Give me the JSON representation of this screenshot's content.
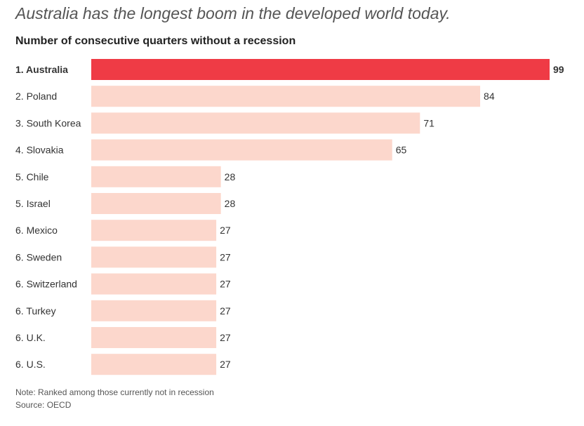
{
  "headline": "Australia has the longest boom in the developed world today.",
  "chart_data": {
    "type": "bar",
    "orientation": "horizontal",
    "title": "Number of consecutive quarters without a recession",
    "categories": [
      "1. Australia",
      "2. Poland",
      "3. South Korea",
      "4. Slovakia",
      "5. Chile",
      "5. Israel",
      "6. Mexico",
      "6. Sweden",
      "6. Switzerland",
      "6. Turkey",
      "6. U.K.",
      "6. U.S."
    ],
    "values": [
      99,
      84,
      71,
      65,
      28,
      28,
      27,
      27,
      27,
      27,
      27,
      27
    ],
    "highlight_index": 0,
    "xlim": [
      0,
      99
    ],
    "xlabel": "",
    "ylabel": "",
    "grid": false,
    "colors": {
      "highlight": "#ef3b45",
      "bar": "#fcd7cc",
      "label": "#333333"
    }
  },
  "note": "Note: Ranked among those currently not in recession",
  "source": "Source: OECD"
}
